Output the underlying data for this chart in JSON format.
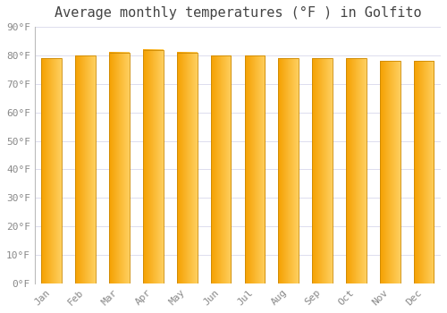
{
  "title": "Average monthly temperatures (°F ) in Golfito",
  "months": [
    "Jan",
    "Feb",
    "Mar",
    "Apr",
    "May",
    "Jun",
    "Jul",
    "Aug",
    "Sep",
    "Oct",
    "Nov",
    "Dec"
  ],
  "values": [
    79,
    80,
    81,
    82,
    81,
    80,
    80,
    79,
    79,
    79,
    78,
    78
  ],
  "bar_color_left": "#F5A000",
  "bar_color_right": "#FFD060",
  "ylim": [
    0,
    90
  ],
  "yticks": [
    0,
    10,
    20,
    30,
    40,
    50,
    60,
    70,
    80,
    90
  ],
  "ytick_labels": [
    "0°F",
    "10°F",
    "20°F",
    "30°F",
    "40°F",
    "50°F",
    "60°F",
    "70°F",
    "80°F",
    "90°F"
  ],
  "bg_color": "#FFFFFF",
  "plot_bg_color": "#FFFFFF",
  "grid_color": "#DDDDEE",
  "title_fontsize": 11,
  "tick_fontsize": 8,
  "bar_edge_color": "#CC8800",
  "bar_width": 0.6
}
